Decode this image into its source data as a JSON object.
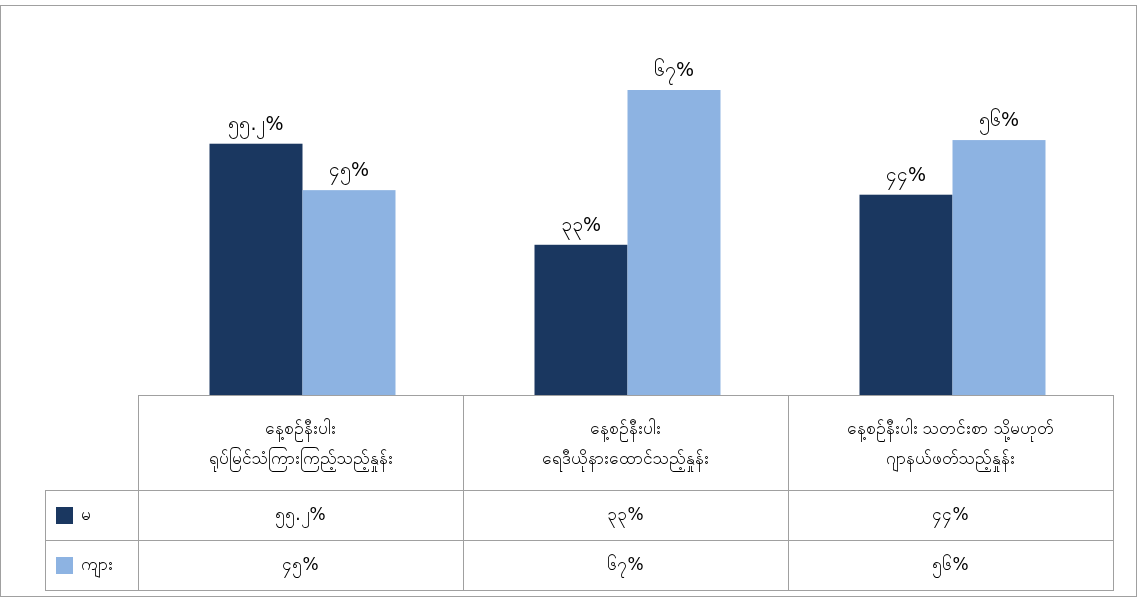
{
  "chart_data": {
    "type": "bar",
    "categories": [
      "နေ့စဉ်နီးပါး\nရုပ်မြင်သံကြားကြည့်သည့်နှုန်း",
      "နေ့စဉ်နီးပါး\nရေဒီယိုနားထောင်သည့်နှုန်း",
      "နေ့စဉ်နီးပါး သတင်းစာ သို့မဟုတ်\nဂျာနယ်ဖတ်သည့်နှုန်း"
    ],
    "series": [
      {
        "name": "မ",
        "color": "#1a3760",
        "values": [
          55.2,
          33,
          44
        ],
        "value_labels": [
          "၅၅.၂%",
          "၃၃%",
          "၄၄%"
        ]
      },
      {
        "name": "ကျား",
        "color": "#8db3e2",
        "values": [
          45,
          67,
          56
        ],
        "value_labels": [
          "၄၅%",
          "၆၇%",
          "၅၆%"
        ]
      }
    ],
    "legend": "left"
  }
}
